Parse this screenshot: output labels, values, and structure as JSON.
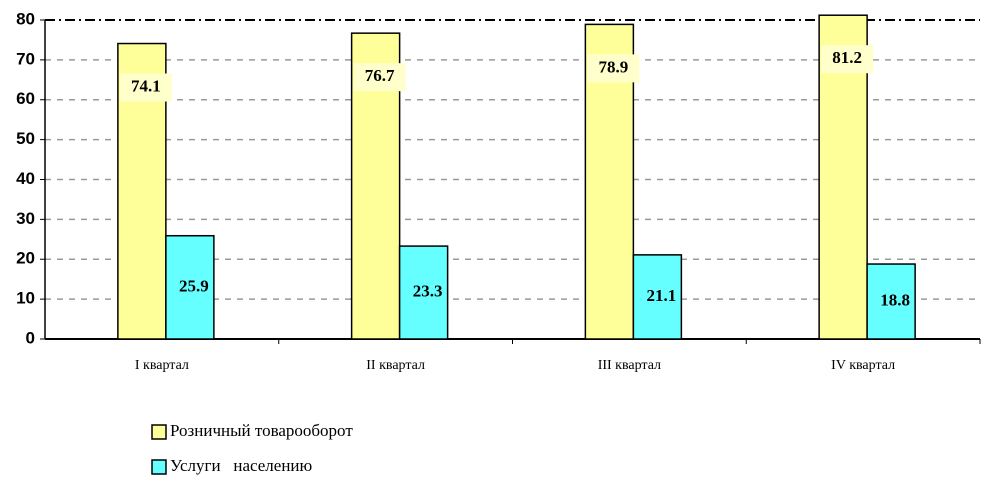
{
  "chart_data": {
    "type": "bar",
    "categories": [
      "I квартал",
      "II квартал",
      "III квартал",
      "IV квартал"
    ],
    "series": [
      {
        "name": "Розничный товарооборот",
        "color": "#ffff99",
        "values": [
          74.1,
          76.7,
          78.9,
          81.2
        ]
      },
      {
        "name": "Услуги   населению",
        "color": "#66ffff",
        "values": [
          25.9,
          23.3,
          21.1,
          18.8
        ]
      }
    ],
    "ylim": [
      0,
      80
    ],
    "yticks": [
      0,
      10,
      20,
      30,
      40,
      50,
      60,
      70,
      80
    ],
    "grid": true
  }
}
